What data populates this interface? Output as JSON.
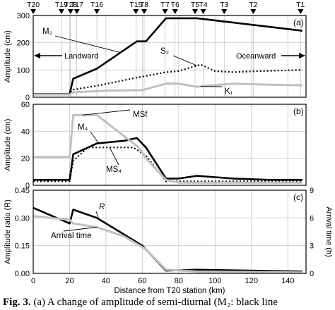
{
  "chart_data": [
    {
      "panel": "(a)",
      "type": "line",
      "ylabel": "Amplitude (cm)",
      "xlim": [
        0,
        150
      ],
      "ylim": [
        0,
        300
      ],
      "xticks": [
        0,
        20,
        40,
        60,
        80,
        100,
        120,
        140
      ],
      "yticks": [
        0,
        100,
        200,
        300
      ],
      "stations": [
        {
          "name": "T20",
          "x": 0
        },
        {
          "name": "T19",
          "x": 15.5
        },
        {
          "name": "T18",
          "x": 20.5
        },
        {
          "name": "T17",
          "x": 24
        },
        {
          "name": "T16",
          "x": 35
        },
        {
          "name": "T15",
          "x": 56.5
        },
        {
          "name": "T8",
          "x": 61
        },
        {
          "name": "T7",
          "x": 72.5
        },
        {
          "name": "T6",
          "x": 78
        },
        {
          "name": "T5",
          "x": 89
        },
        {
          "name": "T4",
          "x": 93.5
        },
        {
          "name": "T3",
          "x": 105
        },
        {
          "name": "T2",
          "x": 121
        },
        {
          "name": "T1",
          "x": 147
        }
      ],
      "annotations": [
        {
          "text": "Landward",
          "arrow": "left"
        },
        {
          "text": "Oceanward",
          "arrow": "right"
        }
      ],
      "series": [
        {
          "name": "M₂",
          "color": "#000000",
          "style": "solid",
          "x": [
            0,
            20,
            22,
            35,
            57,
            62,
            73,
            90,
            148
          ],
          "y": [
            12,
            12,
            68,
            105,
            205,
            205,
            290,
            290,
            244
          ]
        },
        {
          "name": "S₂",
          "color": "#000000",
          "style": "dotted",
          "x": [
            0,
            20,
            22,
            35,
            57,
            62,
            73,
            80,
            92,
            100,
            110,
            125,
            148
          ],
          "y": [
            10,
            10,
            28,
            42,
            72,
            78,
            92,
            96,
            120,
            96,
            92,
            96,
            100
          ]
        },
        {
          "name": "K₁",
          "color": "#c0c0c0",
          "style": "solid",
          "x": [
            0,
            20,
            22,
            40,
            60,
            73,
            80,
            90,
            95,
            110,
            130,
            148
          ],
          "y": [
            10,
            10,
            18,
            24,
            26,
            50,
            50,
            38,
            42,
            50,
            46,
            44
          ]
        }
      ]
    },
    {
      "panel": "(b)",
      "type": "line",
      "ylabel": "Amplitude (cm)",
      "xlim": [
        0,
        150
      ],
      "ylim": [
        0,
        60
      ],
      "xticks": [
        0,
        20,
        40,
        60,
        80,
        100,
        120,
        140
      ],
      "yticks": [
        0,
        20,
        40,
        60
      ],
      "series": [
        {
          "name": "M₄",
          "color": "#000000",
          "style": "solid",
          "x": [
            0,
            20,
            22,
            35,
            50,
            57,
            62,
            73,
            80,
            90,
            100,
            110,
            130,
            148
          ],
          "y": [
            4,
            4,
            23,
            31,
            33,
            35,
            28,
            5,
            5,
            7,
            6,
            5,
            4,
            4
          ]
        },
        {
          "name": "MS₄",
          "color": "#000000",
          "style": "dotted",
          "x": [
            0,
            20,
            22,
            30,
            45,
            55,
            62,
            73,
            90,
            148
          ],
          "y": [
            3,
            3,
            18,
            28,
            28,
            28,
            22,
            3,
            3,
            3
          ]
        },
        {
          "name": "MSf",
          "color": "#c0c0c0",
          "style": "solid",
          "x": [
            0,
            20,
            22,
            35,
            58,
            62,
            73,
            80,
            148
          ],
          "y": [
            21,
            21,
            52,
            52,
            28,
            20,
            4,
            2,
            2
          ]
        }
      ]
    },
    {
      "panel": "(c)",
      "type": "line",
      "ylabel": "Amplitude ratio (R)",
      "y2label": "Arrival time (h)",
      "xlabel": "Distance from T20 station (km)",
      "xlim": [
        0,
        150
      ],
      "ylim": [
        0,
        0.45
      ],
      "y2lim": [
        0,
        9
      ],
      "xticks": [
        0,
        20,
        40,
        60,
        80,
        100,
        120,
        140
      ],
      "yticks": [
        0,
        0.15,
        0.3,
        0.45
      ],
      "ytick_labels": [
        "0.00",
        "0.15",
        "0.30",
        "0.45"
      ],
      "y2ticks": [
        0,
        3,
        6,
        9
      ],
      "series": [
        {
          "name": "R",
          "axis": "left",
          "color": "#000000",
          "style": "solid",
          "x": [
            0,
            20,
            22,
            35,
            50,
            60,
            73,
            90,
            148
          ],
          "y": [
            0.355,
            0.27,
            0.345,
            0.3,
            0.21,
            0.15,
            0.015,
            0.02,
            0.01
          ]
        },
        {
          "name": "Arrival time",
          "axis": "right",
          "color": "#c0c0c0",
          "style": "solid",
          "x": [
            0,
            20,
            22,
            35,
            50,
            62,
            73,
            90,
            148
          ],
          "y": [
            6.2,
            5.8,
            5.4,
            5.0,
            4.0,
            2.6,
            0.4,
            0.2,
            0.1
          ]
        }
      ]
    }
  ],
  "caption": {
    "label": "Fig. 3.",
    "text": "(a) A change of amplitude of semi-diurnal (M₂: black line"
  }
}
